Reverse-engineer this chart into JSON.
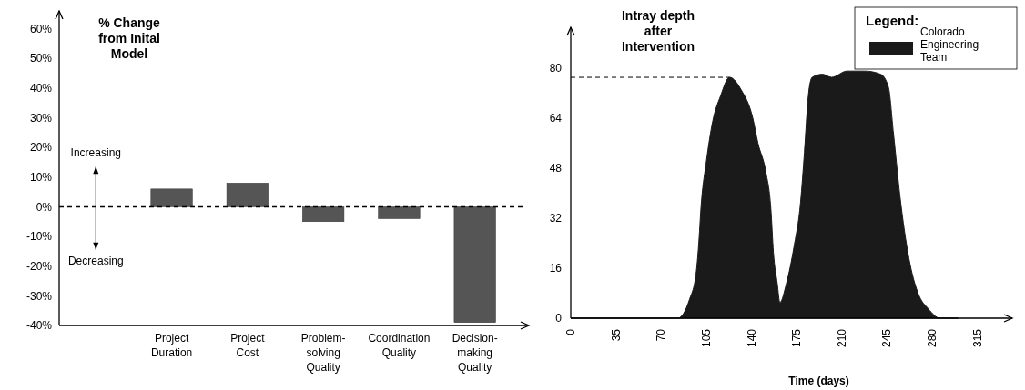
{
  "chart_data": [
    {
      "type": "bar",
      "title": "% Change from Inital Model",
      "categories": [
        null,
        "Project Duration",
        "Project Cost",
        "Problem-solving Quality",
        "Coordination Quality",
        "Decision-making Quality"
      ],
      "values": [
        null,
        6,
        8,
        -5,
        -4,
        -39
      ],
      "color": "#555555",
      "ylim": [
        -40,
        66
      ],
      "yticks": [
        {
          "value": -40,
          "label": "-40%"
        },
        {
          "value": -30,
          "label": "-30%"
        },
        {
          "value": -20,
          "label": "-20%"
        },
        {
          "value": -10,
          "label": "-10%"
        },
        {
          "value": 0,
          "label": "0%"
        },
        {
          "value": 10,
          "label": "10%"
        },
        {
          "value": 20,
          "label": "20%"
        },
        {
          "value": 30,
          "label": "30%"
        },
        {
          "value": 40,
          "label": "40%"
        },
        {
          "value": 50,
          "label": "50%"
        },
        {
          "value": 60,
          "label": "60%"
        }
      ],
      "ref_lines": [
        {
          "axis": "y",
          "value": 0,
          "line_style": "dashed",
          "color": "#000000"
        }
      ],
      "annotations": [
        "Increasing",
        "Decreasing"
      ],
      "grid": false,
      "legend": false
    },
    {
      "type": "area",
      "title": "Intray depth after Intervention",
      "xlabel": "Time (days)",
      "legend_title": "Legend:",
      "series": [
        {
          "name": "Colorado Engineering Team",
          "color": "#1a1a1a",
          "x": [
            0,
            83,
            92,
            97,
            99,
            101,
            105,
            110,
            116,
            123,
            132,
            141,
            145,
            151,
            155,
            157,
            160,
            162,
            167,
            173,
            178,
            181,
            184,
            187,
            195,
            202,
            214,
            228,
            240,
            246,
            250,
            255,
            262,
            269,
            277,
            286,
            300
          ],
          "values": [
            0,
            0,
            6,
            14,
            23,
            36,
            50,
            63,
            71,
            77,
            73,
            64,
            56,
            47,
            35,
            21,
            11,
            5,
            11,
            23,
            37,
            53,
            71,
            77,
            78,
            77,
            79,
            79,
            78,
            74,
            59,
            39,
            19,
            8,
            3,
            0,
            0
          ]
        }
      ],
      "xlim": [
        0,
        342
      ],
      "xticks": [
        0,
        35,
        70,
        105,
        140,
        175,
        210,
        245,
        280,
        315
      ],
      "ylim": [
        0,
        93
      ],
      "yticks": [
        0,
        16,
        32,
        48,
        64,
        80
      ],
      "ref_lines": [
        {
          "axis": "y",
          "value": 77,
          "line_style": "dashed",
          "color": "#000000"
        }
      ],
      "grid": false,
      "legend": "top right"
    }
  ]
}
